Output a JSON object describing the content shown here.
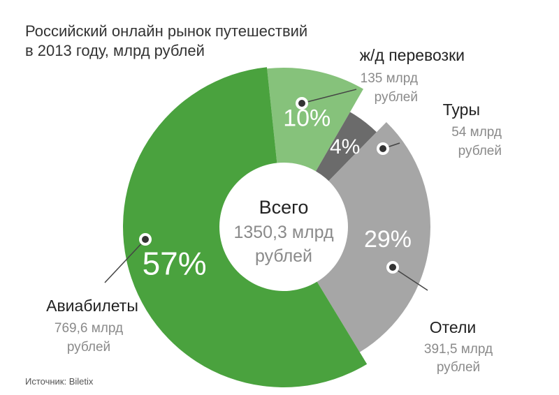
{
  "title_lines": [
    "Российский онлайн рынок путешествий",
    "в 2013 году, млрд рублей"
  ],
  "center": {
    "line1": "Всего",
    "line2": "1350,3 млрд",
    "line3": "рублей"
  },
  "source": "Источник: Biletix",
  "chart_data": {
    "type": "pie",
    "title": "Российский онлайн рынок путешествий в 2013 году, млрд рублей",
    "total": 1350.3,
    "total_label": "Всего 1350,3 млрд рублей",
    "unit": "млрд рублей",
    "slices": [
      {
        "name": "ж/д перевозки",
        "value": 135,
        "value_label": "135 млрд",
        "unit_label": "рублей",
        "percent": 10,
        "percent_label": "10%",
        "color": "#86c27b"
      },
      {
        "name": "Туры",
        "value": 54,
        "value_label": "54 млрд",
        "unit_label": "рублей",
        "percent": 4,
        "percent_label": "4%",
        "color": "#6b6b6b"
      },
      {
        "name": "Отели",
        "value": 391.5,
        "value_label": "391,5 млрд",
        "unit_label": "рублей",
        "percent": 29,
        "percent_label": "29%",
        "color": "#a6a6a6"
      },
      {
        "name": "Авиабилеты",
        "value": 769.6,
        "value_label": "769,6 млрд",
        "unit_label": "рублей",
        "percent": 57,
        "percent_label": "57%",
        "color": "#4aa23e"
      }
    ]
  }
}
